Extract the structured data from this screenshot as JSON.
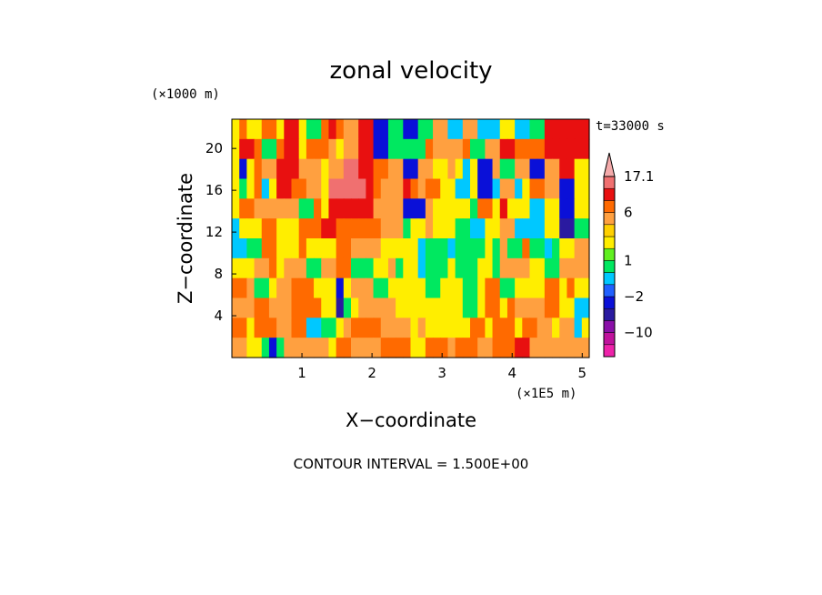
{
  "chart_data": {
    "type": "heatmap",
    "title": "zonal velocity",
    "xlabel": "X−coordinate",
    "ylabel": "Z−coordinate",
    "x_scale_label": "(×1E5 m)",
    "y_scale_label": "(×1000 m)",
    "time_label": "t=33000 s",
    "footer": "CONTOUR INTERVAL = 1.500E+00",
    "xlim": [
      0,
      5.1
    ],
    "ylim": [
      0,
      22.8
    ],
    "x_ticks": [
      "1",
      "2",
      "3",
      "4",
      "5"
    ],
    "y_ticks": [
      "4",
      "8",
      "12",
      "16",
      "20"
    ],
    "x_tick_values": [
      1,
      2,
      3,
      4,
      5
    ],
    "y_tick_values": [
      4,
      8,
      12,
      16,
      20
    ],
    "colorbar": {
      "labels": [
        "17.1",
        "6",
        "1",
        "−2",
        "−10"
      ],
      "label_values": [
        17.1,
        6,
        1,
        -2,
        -10
      ],
      "levels": [
        -17,
        -13,
        -10,
        -6,
        -4,
        -2,
        -1,
        0,
        1,
        2,
        3,
        4,
        6,
        8,
        12,
        17.1
      ],
      "colors": [
        "#ee22aa",
        "#c0129c",
        "#8a0fa8",
        "#2a1aa0",
        "#0a10d8",
        "#2060ff",
        "#00c8ff",
        "#00e860",
        "#60f020",
        "#ffee00",
        "#ffd000",
        "#ffa040",
        "#ff6a00",
        "#e81010",
        "#f07070",
        "#f4aaaa"
      ]
    },
    "grid_rows_top_to_bottom": [
      "GIGGIIGJJGFFIJIHHJJDDFFDDFFHHEEHHEEEGGEEFFJJJJJJ",
      "GJJIFFIJJGIIIHGHHJJDDFFFFFIHHHHIFFHHJJIIIIJJJJJJ",
      "GDGIHHJJJHHHGHHKKJJIIHHDDHHGGHGEGDDHFFHHDDHHJJGG",
      "GFGIEGJJIIHHGKKKKKJIHHHJIHIIGGEEGDDEHHEGIIHHDDGG",
      "GIIHHHHHHFFIGJJJJJJHHHHDDDHGGGGGFIIGJGGGEEGGDDGG",
      "EGGGIIGGGIIIJJIIIIIIHHHFGGHGGGFFEEGGHHEEEEGGCCFF",
      "EEFFIIGGGIGGGGIIHHHHGGGGGEFFFEFFFFGFHFFIFFEFGGHH",
      "GGGHHIGHHHFFHHIIFFFGGHFGGEFFFGFFFGGFHHHHGGFFHHHH",
      "IIHFFGHHIIIGGGDGHHHFFGGGGGFFGGGFFGIIFFGGGGIIGIGG",
      "HHHIIHHHIIIIGGCFGHHHHHGGGGGGGGGFFGIIGIHHHHIIGGEE",
      "IIGIIIHHIIEEFFGHIIIIHHHHGHGGGGGGIIGIIIGIIHHGHHEG",
      "HHGGFDFHHHHHHGIIHHHHIIIIGGIIIHIIIHHIIIJJHHHHHHHH"
    ]
  }
}
